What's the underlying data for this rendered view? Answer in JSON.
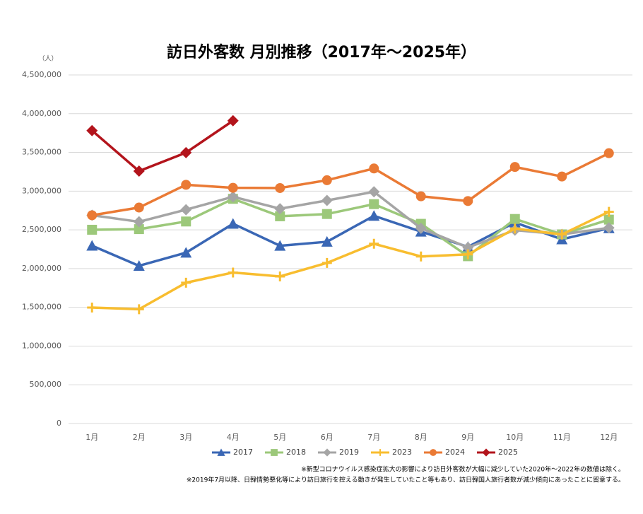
{
  "chart_data": {
    "type": "line",
    "title": "訪日外客数 月別推移（2017年～2025年）",
    "unit_label": "（人）",
    "categories": [
      "1月",
      "2月",
      "3月",
      "4月",
      "5月",
      "6月",
      "7月",
      "8月",
      "9月",
      "10月",
      "11月",
      "12月"
    ],
    "series": [
      {
        "name": "2017",
        "color": "#3a67b5",
        "marker": "triangle",
        "values": [
          2295668,
          2035813,
          2205731,
          2578970,
          2294681,
          2346439,
          2681479,
          2477487,
          2280062,
          2595110,
          2377947,
          2521396
        ]
      },
      {
        "name": "2018",
        "color": "#9cc87a",
        "marker": "square",
        "values": [
          2501409,
          2509297,
          2607956,
          2900718,
          2675052,
          2704631,
          2832040,
          2578021,
          2159600,
          2640610,
          2442151,
          2632030
        ]
      },
      {
        "name": "2019",
        "color": "#a5a5a5",
        "marker": "diamond",
        "values": [
          2689339,
          2604322,
          2760136,
          2926685,
          2773091,
          2880041,
          2991189,
          2520134,
          2272883,
          2496568,
          2441274,
          2526387
        ]
      },
      {
        "name": "2023",
        "color": "#f8bd2f",
        "marker": "plus",
        "values": [
          1497472,
          1475455,
          1817500,
          1949236,
          1898900,
          2073300,
          2320600,
          2156900,
          2183300,
          2516500,
          2440800,
          2733000
        ]
      },
      {
        "name": "2024",
        "color": "#ea7a35",
        "marker": "circle",
        "values": [
          2688478,
          2788224,
          3081781,
          3042476,
          3039969,
          3140900,
          3292500,
          2933000,
          2872200,
          3312200,
          3188600,
          3489800
        ]
      },
      {
        "name": "2025",
        "color": "#b3141c",
        "marker": "diamond",
        "values": [
          3781629,
          3258400,
          3497600,
          3908900,
          null,
          null,
          null,
          null,
          null,
          null,
          null,
          null
        ]
      }
    ],
    "ylim": [
      0,
      4500000
    ],
    "yticks": [
      0,
      {
        "value": 500000,
        "label": "500,000"
      },
      {
        "value": 1000000,
        "label": "1,000,000"
      },
      {
        "value": 1500000,
        "label": "1,500,000"
      },
      {
        "value": 2000000,
        "label": "2,000,000"
      },
      {
        "value": 2500000,
        "label": "2,500,000"
      },
      {
        "value": 3000000,
        "label": "3,000,000"
      },
      {
        "value": 3500000,
        "label": "3,500,000"
      },
      {
        "value": 4000000,
        "label": "4,000,000"
      },
      {
        "value": 4500000,
        "label": "4,500,000"
      }
    ],
    "grid": true,
    "legend": "bottom",
    "notes": [
      "※新型コロナウイルス感染症拡大の影響により訪日外客数が大幅に減少していた2020年～2022年の数値は除く。",
      "※2019年7月以降、日韓情勢悪化等により訪日旅行を控える動きが発生していたこと等もあり、訪日韓国人旅行者数が減少傾向にあったことに留意する。"
    ]
  }
}
